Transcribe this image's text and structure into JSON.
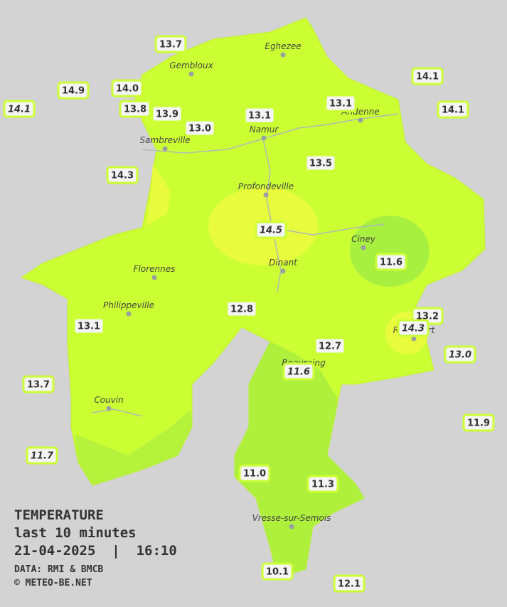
{
  "legend": {
    "title": "TEMPERATURE",
    "period": "last 10 minutes",
    "datetime": "21-04-2025  |  16:10",
    "source": "DATA: RMI & BMCB",
    "copyright": "© METEO-BE.NET"
  },
  "places": [
    "Eghezee",
    "Gembloux",
    "Andenne",
    "Namur",
    "Sambreville",
    "Profondeville",
    "Ciney",
    "Dinant",
    "Florennes",
    "Philippeville",
    "Rochefort",
    "Beauraing",
    "Couvin",
    "Vresse-sur-Semois"
  ],
  "stations": [
    "13.7",
    "14.9",
    "14.0",
    "14.1",
    "13.8",
    "13.9",
    "13.0",
    "13.1",
    "13.1",
    "14.1",
    "14.1",
    "14.3",
    "13.5",
    "14.5",
    "11.6",
    "12.8",
    "13.1",
    "13.2",
    "14.3",
    "12.7",
    "13.0",
    "11.6",
    "13.7",
    "11.9",
    "11.7",
    "11.0",
    "11.3",
    "10.1",
    "12.1"
  ]
}
